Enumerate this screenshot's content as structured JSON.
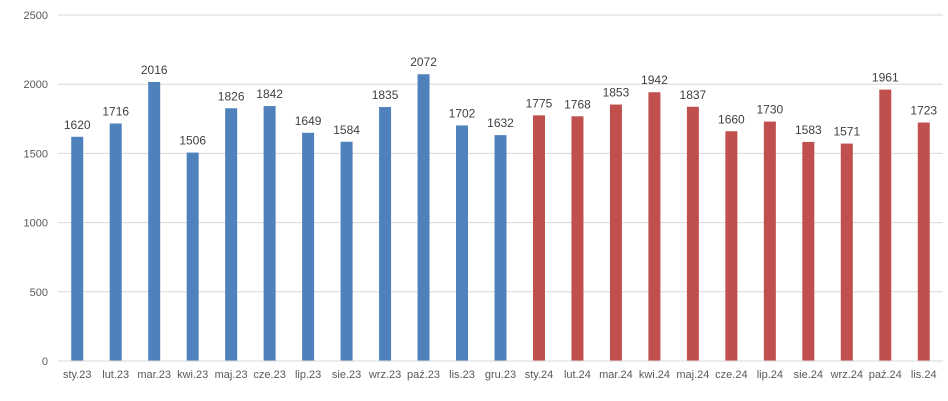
{
  "chart_data": {
    "type": "bar",
    "title": "",
    "xlabel": "",
    "ylabel": "",
    "ylim": [
      0,
      2500
    ],
    "yticks": [
      0,
      500,
      1000,
      1500,
      2000,
      2500
    ],
    "grid": true,
    "legend": "none",
    "categories": [
      "sty.23",
      "lut.23",
      "mar.23",
      "kwi.23",
      "maj.23",
      "cze.23",
      "lip.23",
      "sie.23",
      "wrz.23",
      "paź.23",
      "lis.23",
      "gru.23",
      "sty.24",
      "lut.24",
      "mar.24",
      "kwi.24",
      "maj.24",
      "cze.24",
      "lip.24",
      "sie.24",
      "wrz.24",
      "paź.24",
      "lis.24"
    ],
    "values": [
      1620,
      1716,
      2016,
      1506,
      1826,
      1842,
      1649,
      1584,
      1835,
      2072,
      1702,
      1632,
      1775,
      1768,
      1853,
      1942,
      1837,
      1660,
      1730,
      1583,
      1571,
      1961,
      1723
    ],
    "series_colors": {
      "2023": "#4F81BD",
      "2024": "#C0504D"
    }
  }
}
